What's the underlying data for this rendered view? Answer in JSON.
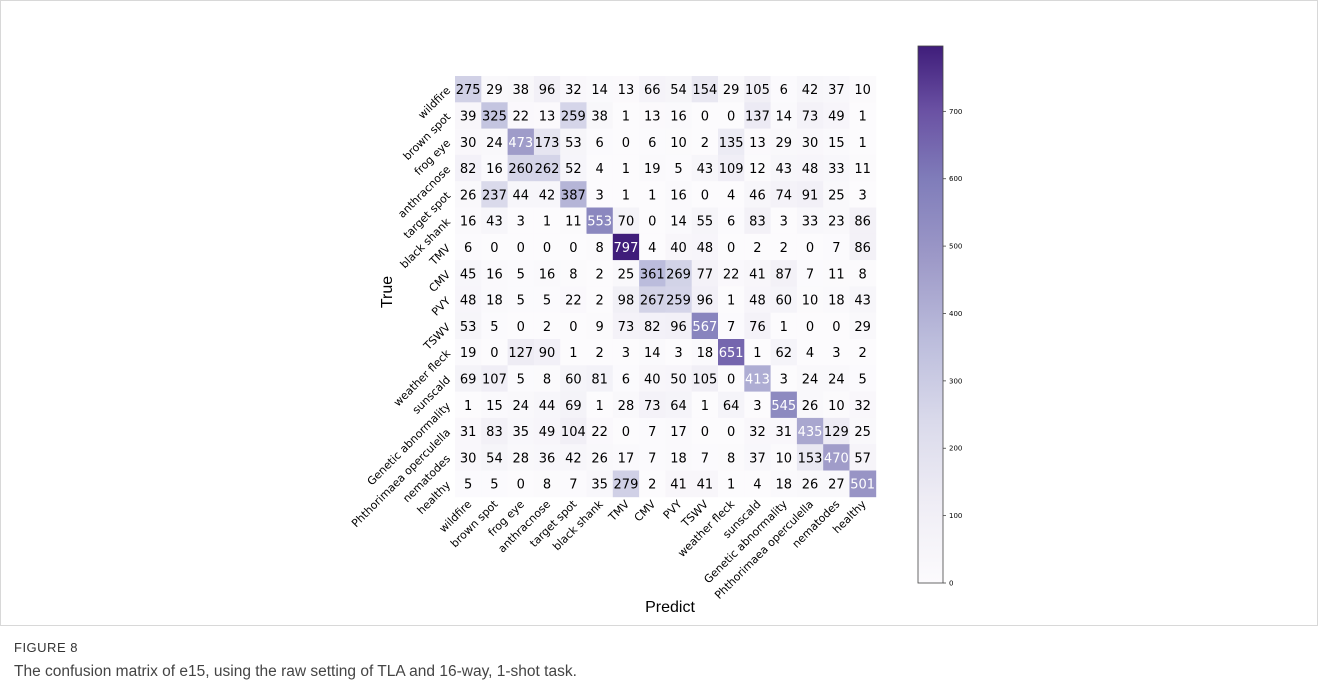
{
  "figure": {
    "label": "FIGURE 8",
    "caption": "The confusion matrix of e15, using the raw setting of TLA and 16-way, 1-shot task."
  },
  "chart_data": {
    "type": "heatmap",
    "title": "",
    "xlabel": "Predict",
    "ylabel": "True",
    "labels": [
      "wildfire",
      "brown spot",
      "frog eye",
      "anthracnose",
      "target spot",
      "black shank",
      "TMV",
      "CMV",
      "PVY",
      "TSWV",
      "weather fleck",
      "sunscald",
      "Genetic abnormality",
      "Phthorimaea operculella",
      "nematodes",
      "healthy"
    ],
    "matrix": [
      [
        275,
        29,
        38,
        96,
        32,
        14,
        13,
        66,
        54,
        154,
        29,
        105,
        6,
        42,
        37,
        10
      ],
      [
        39,
        325,
        22,
        13,
        259,
        38,
        1,
        13,
        16,
        0,
        0,
        137,
        14,
        73,
        49,
        1
      ],
      [
        30,
        24,
        473,
        173,
        53,
        6,
        0,
        6,
        10,
        2,
        135,
        13,
        29,
        30,
        15,
        1
      ],
      [
        82,
        16,
        260,
        262,
        52,
        4,
        1,
        19,
        5,
        43,
        109,
        12,
        43,
        48,
        33,
        11
      ],
      [
        26,
        237,
        44,
        42,
        387,
        3,
        1,
        1,
        16,
        0,
        4,
        46,
        74,
        91,
        25,
        3
      ],
      [
        16,
        43,
        3,
        1,
        11,
        553,
        70,
        0,
        14,
        55,
        6,
        83,
        3,
        33,
        23,
        86
      ],
      [
        6,
        0,
        0,
        0,
        0,
        8,
        797,
        4,
        40,
        48,
        0,
        2,
        2,
        0,
        7,
        86
      ],
      [
        45,
        16,
        5,
        16,
        8,
        2,
        25,
        361,
        269,
        77,
        22,
        41,
        87,
        7,
        11,
        8
      ],
      [
        48,
        18,
        5,
        5,
        22,
        2,
        98,
        267,
        259,
        96,
        1,
        48,
        60,
        10,
        18,
        43
      ],
      [
        53,
        5,
        0,
        2,
        0,
        9,
        73,
        82,
        96,
        567,
        7,
        76,
        1,
        0,
        0,
        29
      ],
      [
        19,
        0,
        127,
        90,
        1,
        2,
        3,
        14,
        3,
        18,
        651,
        1,
        62,
        4,
        3,
        2
      ],
      [
        69,
        107,
        5,
        8,
        60,
        81,
        6,
        40,
        50,
        105,
        0,
        413,
        3,
        24,
        24,
        5
      ],
      [
        1,
        15,
        24,
        44,
        69,
        1,
        28,
        73,
        64,
        1,
        64,
        3,
        545,
        26,
        10,
        32
      ],
      [
        31,
        83,
        35,
        49,
        104,
        22,
        0,
        7,
        17,
        0,
        0,
        32,
        31,
        435,
        129,
        25
      ],
      [
        30,
        54,
        28,
        36,
        42,
        26,
        17,
        7,
        18,
        7,
        8,
        37,
        10,
        153,
        470,
        57
      ],
      [
        5,
        5,
        0,
        8,
        7,
        35,
        279,
        2,
        41,
        41,
        1,
        4,
        18,
        26,
        27,
        501
      ]
    ],
    "colorbar": {
      "range": [
        0,
        797
      ],
      "ticks": [
        0,
        100,
        200,
        300,
        400,
        500,
        600,
        700
      ],
      "colormap": "Purples",
      "color_low": "#fcfbfd",
      "color_high": "#3f1d7a"
    },
    "grid": false
  }
}
